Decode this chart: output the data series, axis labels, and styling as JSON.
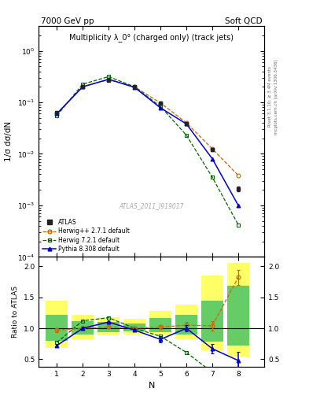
{
  "title_left": "7000 GeV pp",
  "title_right": "Soft QCD",
  "plot_title": "Multiplicity λ_0° (charged only) (track jets)",
  "watermark": "ATLAS_2011_I919017",
  "right_label_top": "Rivet 3.1.10; ≥ 3.4M events",
  "right_label_bottom": "mcplots.cern.ch [arXiv:1306.3436]",
  "x_data": [
    1,
    2,
    3,
    4,
    5,
    6,
    7,
    8
  ],
  "atlas_y": [
    0.063,
    0.2,
    0.27,
    0.2,
    0.095,
    0.038,
    0.012,
    0.0021
  ],
  "atlas_yerr": [
    0.003,
    0.005,
    0.006,
    0.005,
    0.004,
    0.002,
    0.0008,
    0.0002
  ],
  "herwig_pp_y": [
    0.06,
    0.2,
    0.275,
    0.2,
    0.097,
    0.04,
    0.0125,
    0.0038
  ],
  "herwig7_y": [
    0.055,
    0.225,
    0.315,
    0.2,
    0.083,
    0.023,
    0.0035,
    0.00042
  ],
  "pythia_y": [
    0.06,
    0.2,
    0.28,
    0.195,
    0.078,
    0.038,
    0.008,
    0.001
  ],
  "ratio_herwig_pp": [
    0.97,
    1.0,
    1.02,
    1.0,
    1.02,
    1.05,
    1.04,
    1.82
  ],
  "ratio_herwig7": [
    0.77,
    1.12,
    1.17,
    1.0,
    0.87,
    0.61,
    0.29,
    0.2
  ],
  "ratio_pythia": [
    0.72,
    1.0,
    1.1,
    0.97,
    0.82,
    1.0,
    0.67,
    0.48
  ],
  "ratio_herwig_pp_yerr": [
    0.03,
    0.02,
    0.02,
    0.02,
    0.03,
    0.05,
    0.08,
    0.12
  ],
  "ratio_herwig7_yerr": [
    0.03,
    0.03,
    0.03,
    0.02,
    0.04,
    0.05,
    0.05,
    0.03
  ],
  "ratio_pythia_yerr": [
    0.03,
    0.02,
    0.02,
    0.02,
    0.05,
    0.05,
    0.08,
    0.14
  ],
  "band_yellow_lo": [
    0.68,
    0.82,
    0.88,
    0.9,
    0.88,
    0.82,
    0.65,
    0.55
  ],
  "band_yellow_hi": [
    1.45,
    1.22,
    1.18,
    1.15,
    1.28,
    1.38,
    1.85,
    2.05
  ],
  "band_green_lo": [
    0.8,
    0.9,
    0.94,
    0.95,
    0.94,
    0.9,
    0.78,
    0.72
  ],
  "band_green_hi": [
    1.22,
    1.12,
    1.1,
    1.08,
    1.16,
    1.22,
    1.45,
    1.68
  ],
  "color_atlas": "#222222",
  "color_herwig_pp": "#cc6600",
  "color_herwig7": "#006600",
  "color_pythia": "#0000cc",
  "ylabel_main": "1/σ dσ/dN",
  "ylabel_ratio": "Ratio to ATLAS",
  "xlabel": "N",
  "ylim_main": [
    0.0001,
    3.0
  ],
  "ylim_ratio": [
    0.38,
    2.15
  ],
  "yticks_ratio": [
    0.5,
    1.0,
    1.5,
    2.0
  ]
}
